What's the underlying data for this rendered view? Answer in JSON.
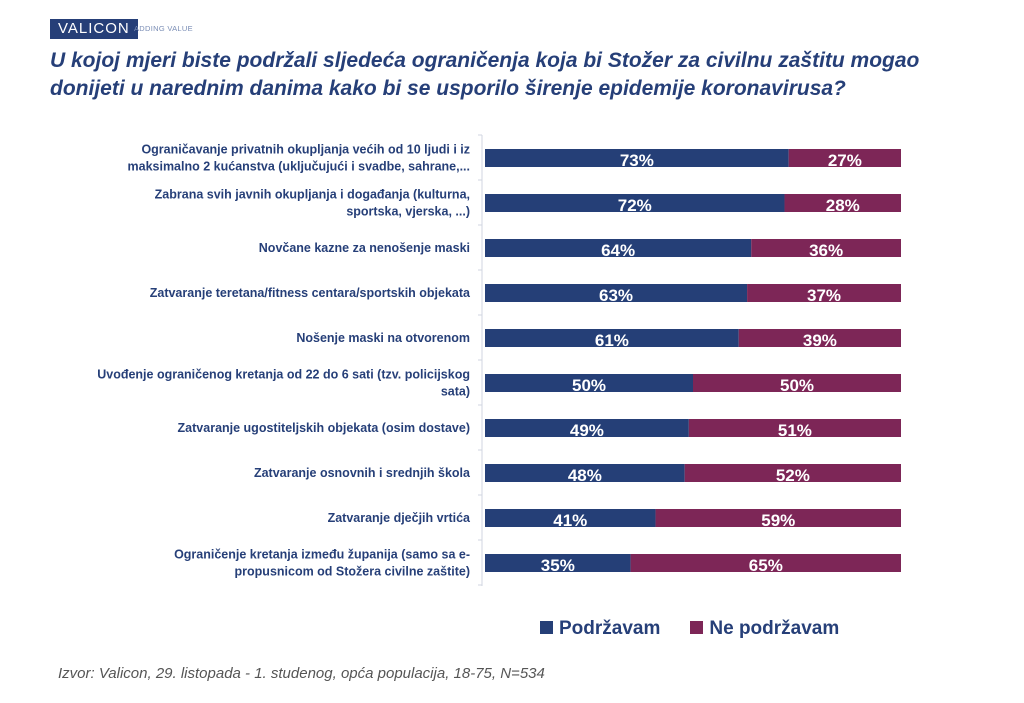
{
  "header": {
    "logo": "VALICON",
    "tagline": "ADDING VALUE",
    "title": "U kojoj mjeri biste podržali sljedeća ograničenja koja bi Stožer za civilnu zaštitu mogao donijeti u narednim danima kako bi se usporilo širenje epidemije koronavirusa?"
  },
  "chart_data": {
    "type": "bar",
    "stacked": true,
    "orientation": "horizontal",
    "categories": [
      [
        "Ograničavanje privatnih okupljanja većih od 10 ljudi i iz",
        "maksimalno 2 kućanstva (uključujući i svadbe, sahrane,..."
      ],
      [
        "Zabrana svih javnih okupljanja i događanja (kulturna,",
        "sportska, vjerska, ...)"
      ],
      [
        "Novčane kazne za nenošenje maski"
      ],
      [
        "Zatvaranje teretana/fitness centara/sportskih objekata"
      ],
      [
        "Nošenje maski na otvorenom"
      ],
      [
        "Uvođenje ograničenog kretanja od 22 do 6 sati (tzv. policijskog",
        "sata)"
      ],
      [
        "Zatvaranje ugostiteljskih objekata (osim dostave)"
      ],
      [
        "Zatvaranje osnovnih i srednjih škola"
      ],
      [
        "Zatvaranje dječjih vrtića"
      ],
      [
        "Ograničenje kretanja između županija (samo sa e-",
        "propusnicom od Stožera civilne zaštite)"
      ]
    ],
    "series": [
      {
        "name": "Podržavam",
        "color": "#253f77",
        "values": [
          73,
          72,
          64,
          63,
          61,
          50,
          49,
          48,
          41,
          35
        ]
      },
      {
        "name": "Ne podržavam",
        "color": "#7d2657",
        "values": [
          27,
          28,
          36,
          37,
          39,
          50,
          51,
          52,
          59,
          65
        ]
      }
    ],
    "value_suffix": "%",
    "xlim": [
      0,
      100
    ],
    "legend": "bottom-right"
  },
  "source": "Izvor: Valicon, 29. listopada - 1. studenog, opća populacija, 18-75, N=534"
}
